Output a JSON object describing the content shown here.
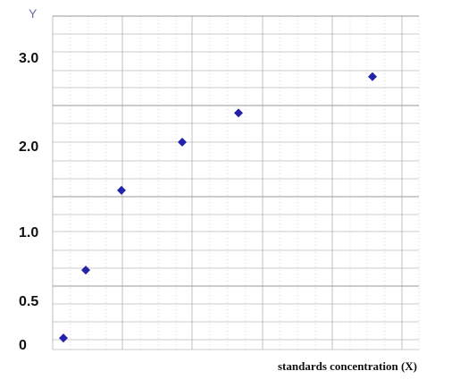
{
  "chart_data": {
    "type": "scatter",
    "title": "",
    "xlabel": "standards concentration (X)",
    "ylabel": "Y",
    "y_ticks": [
      "0",
      "0.5",
      "1.0",
      "2.0",
      "3.0"
    ],
    "x_ticks": [],
    "grid": true,
    "legend": "none",
    "series": [
      {
        "points": [
          {
            "x": 0.0,
            "y": 0.07
          },
          {
            "x": 0.5,
            "y": 0.72
          },
          {
            "x": 1.0,
            "y": 1.48
          },
          {
            "x": 2.0,
            "y": 2.04
          },
          {
            "x": 3.0,
            "y": 2.37
          },
          {
            "x": 5.0,
            "y": 2.78
          }
        ],
        "marker": "diamond",
        "color": "#2222aa"
      }
    ]
  },
  "colors": {
    "grid_major": "#999999",
    "grid_minor": "#bbbbbb",
    "axis_title_y": "#6a73a8",
    "point": "#2222aa"
  }
}
